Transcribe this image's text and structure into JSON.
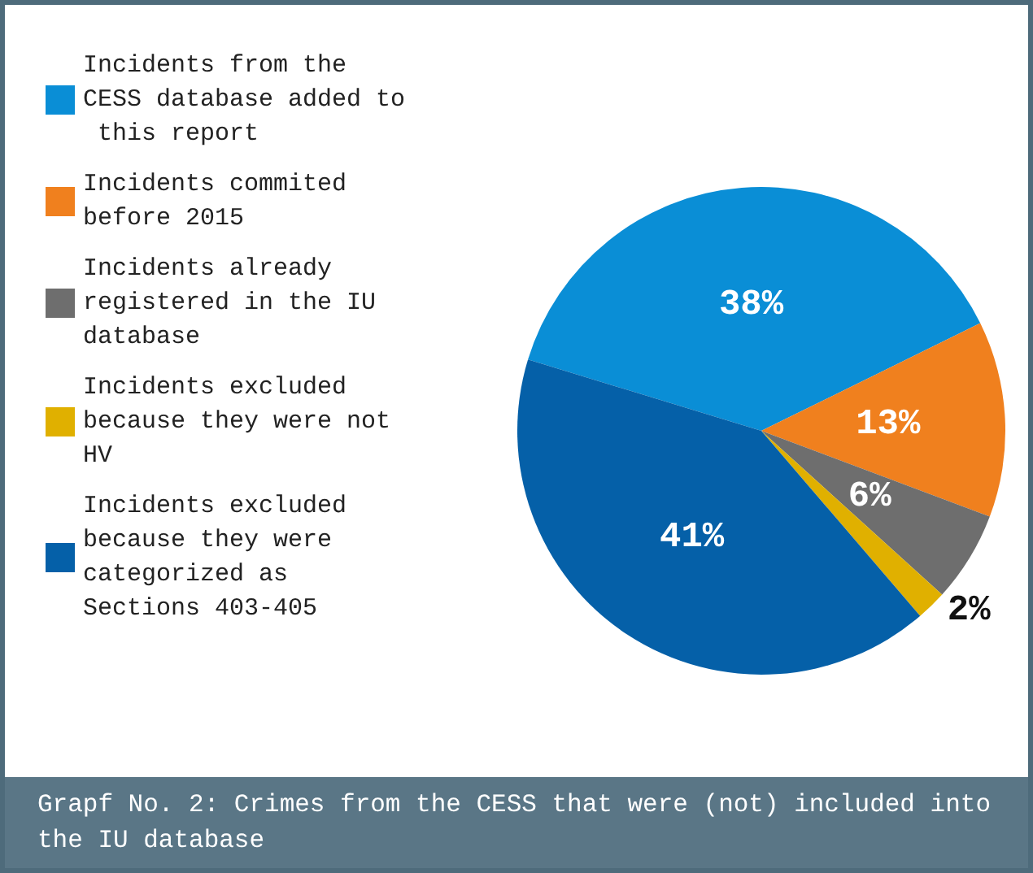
{
  "chart_data": {
    "type": "pie",
    "title": "Grapf No. 2: Crimes from the CESS that were (not) included into the IU database",
    "categories": [
      "Incidents from the CESS database added to this report",
      "Incidents commited before 2015",
      "Incidents already registered in the IU database",
      "Incidents excluded because they were not HV",
      "Incidents excluded because they were categorized as Sections 403-405"
    ],
    "values": [
      38,
      13,
      6,
      2,
      41
    ],
    "value_labels": [
      "38%",
      "13%",
      "6%",
      "2%",
      "41%"
    ],
    "colors": [
      "#0a8ed6",
      "#f0801e",
      "#6e6e6e",
      "#e0b000",
      "#0560a8"
    ],
    "legend": "left"
  }
}
